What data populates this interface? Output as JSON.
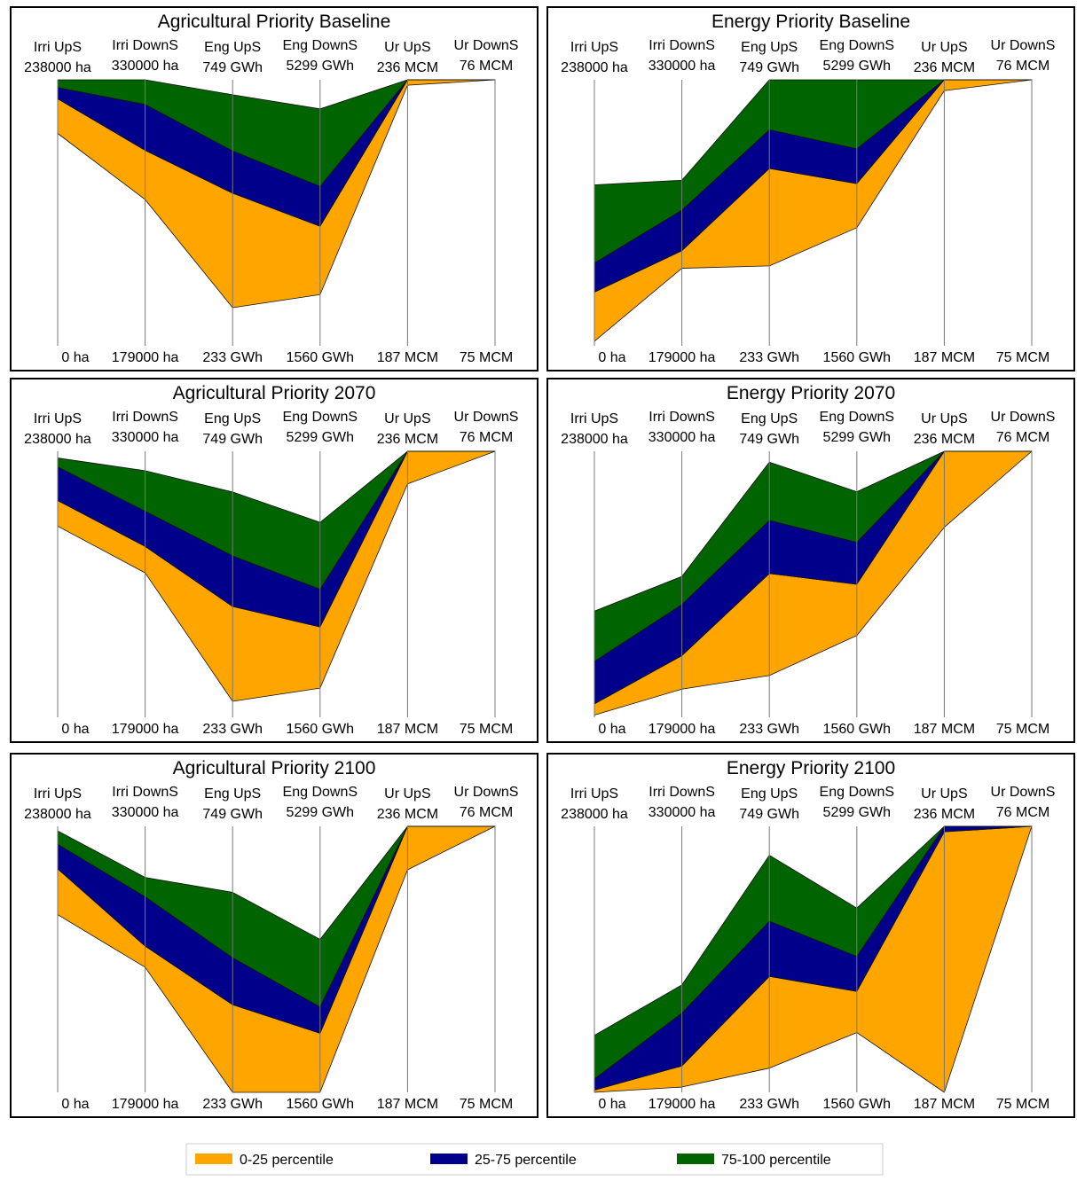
{
  "chart_data": [
    {
      "type": "parallel",
      "title": "Agricultural Priority Baseline",
      "axes": [
        {
          "name": "Irri UpS",
          "lim": [
            {
              "value": 0,
              "label": "0 ha"
            },
            {
              "value": 238000,
              "label": "238000 ha"
            }
          ]
        },
        {
          "name": "Irri DownS",
          "lim": [
            {
              "value": 179000,
              "label": "179000 ha"
            },
            {
              "value": 330000,
              "label": "330000 ha"
            }
          ]
        },
        {
          "name": "Eng UpS",
          "lim": [
            {
              "value": 233,
              "label": "233 GWh"
            },
            {
              "value": 749,
              "label": "749 GWh"
            }
          ]
        },
        {
          "name": "Eng DownS",
          "lim": [
            {
              "value": 1560,
              "label": "1560 GWh"
            },
            {
              "value": 5299,
              "label": "5299 GWh"
            }
          ]
        },
        {
          "name": "Ur UpS",
          "lim": [
            {
              "value": 187,
              "label": "187 MCM"
            },
            {
              "value": 236,
              "label": "236 MCM"
            }
          ]
        },
        {
          "name": "Ur DownS",
          "lim": [
            {
              "value": 75,
              "label": "75 MCM"
            },
            {
              "value": 76,
              "label": "76 MCM"
            }
          ]
        }
      ],
      "series": [
        {
          "name": "0-25 percentile",
          "color": "#ffa500",
          "low": [
            190000,
            262000,
            307,
            2280,
            235,
            76
          ],
          "high": [
            221000,
            290000,
            529,
            3240,
            236,
            76
          ]
        },
        {
          "name": "25-75 percentile",
          "color": "#00008b",
          "low": [
            221000,
            290000,
            529,
            3240,
            236,
            76
          ],
          "high": [
            231000,
            316000,
            611,
            3800,
            236,
            76
          ]
        },
        {
          "name": "75-100 percentile",
          "color": "#006400",
          "low": [
            231000,
            316000,
            611,
            3800,
            236,
            76
          ],
          "high": [
            238000,
            330000,
            720,
            4890,
            236,
            76
          ]
        }
      ]
    },
    {
      "type": "parallel",
      "title": "Energy Priority Baseline",
      "axes": [
        {
          "name": "Irri UpS",
          "lim": [
            {
              "value": 0,
              "label": "0 ha"
            },
            {
              "value": 238000,
              "label": "238000 ha"
            }
          ]
        },
        {
          "name": "Irri DownS",
          "lim": [
            {
              "value": 179000,
              "label": "179000 ha"
            },
            {
              "value": 330000,
              "label": "330000 ha"
            }
          ]
        },
        {
          "name": "Eng UpS",
          "lim": [
            {
              "value": 233,
              "label": "233 GWh"
            },
            {
              "value": 749,
              "label": "749 GWh"
            }
          ]
        },
        {
          "name": "Eng DownS",
          "lim": [
            {
              "value": 1560,
              "label": "1560 GWh"
            },
            {
              "value": 5299,
              "label": "5299 GWh"
            }
          ]
        },
        {
          "name": "Ur UpS",
          "lim": [
            {
              "value": 187,
              "label": "187 MCM"
            },
            {
              "value": 236,
              "label": "236 MCM"
            }
          ]
        },
        {
          "name": "Ur DownS",
          "lim": [
            {
              "value": 75,
              "label": "75 MCM"
            },
            {
              "value": 76,
              "label": "76 MCM"
            }
          ]
        }
      ],
      "series": [
        {
          "name": "0-25 percentile",
          "color": "#ffa500",
          "low": [
            4000,
            223000,
            388,
            3220,
            234,
            76
          ],
          "high": [
            48000,
            233000,
            577,
            3840,
            236,
            76
          ]
        },
        {
          "name": "25-75 percentile",
          "color": "#00008b",
          "low": [
            48000,
            233000,
            577,
            3840,
            236,
            76
          ],
          "high": [
            74000,
            256000,
            652,
            4330,
            236,
            76
          ]
        },
        {
          "name": "75-100 percentile",
          "color": "#006400",
          "low": [
            74000,
            256000,
            652,
            4330,
            236,
            76
          ],
          "high": [
            144000,
            273000,
            749,
            5299,
            236,
            76
          ]
        }
      ]
    },
    {
      "type": "parallel",
      "title": "Agricultural Priority 2070",
      "axes": [
        {
          "name": "Irri UpS",
          "lim": [
            {
              "value": 0,
              "label": "0 ha"
            },
            {
              "value": 238000,
              "label": "238000 ha"
            }
          ]
        },
        {
          "name": "Irri DownS",
          "lim": [
            {
              "value": 179000,
              "label": "179000 ha"
            },
            {
              "value": 330000,
              "label": "330000 ha"
            }
          ]
        },
        {
          "name": "Eng UpS",
          "lim": [
            {
              "value": 233,
              "label": "233 GWh"
            },
            {
              "value": 749,
              "label": "749 GWh"
            }
          ]
        },
        {
          "name": "Eng DownS",
          "lim": [
            {
              "value": 1560,
              "label": "1560 GWh"
            },
            {
              "value": 5299,
              "label": "5299 GWh"
            }
          ]
        },
        {
          "name": "Ur UpS",
          "lim": [
            {
              "value": 187,
              "label": "187 MCM"
            },
            {
              "value": 236,
              "label": "236 MCM"
            }
          ]
        },
        {
          "name": "Ur DownS",
          "lim": [
            {
              "value": 75,
              "label": "75 MCM"
            },
            {
              "value": 76,
              "label": "76 MCM"
            }
          ]
        }
      ],
      "series": [
        {
          "name": "0-25 percentile",
          "color": "#ffa500",
          "low": [
            171000,
            261000,
            264,
            1970,
            230,
            76
          ],
          "high": [
            194000,
            276000,
            448,
            2830,
            236,
            76
          ]
        },
        {
          "name": "25-75 percentile",
          "color": "#00008b",
          "low": [
            194000,
            276000,
            448,
            2830,
            236,
            76
          ],
          "high": [
            224000,
            296000,
            546,
            3360,
            236,
            76
          ]
        },
        {
          "name": "75-100 percentile",
          "color": "#006400",
          "low": [
            224000,
            296000,
            546,
            3360,
            236,
            76
          ],
          "high": [
            232000,
            319000,
            670,
            4300,
            236,
            76
          ]
        }
      ]
    },
    {
      "type": "parallel",
      "title": "Energy Priority 2070",
      "axes": [
        {
          "name": "Irri UpS",
          "lim": [
            {
              "value": 0,
              "label": "0 ha"
            },
            {
              "value": 238000,
              "label": "238000 ha"
            }
          ]
        },
        {
          "name": "Irri DownS",
          "lim": [
            {
              "value": 179000,
              "label": "179000 ha"
            },
            {
              "value": 330000,
              "label": "330000 ha"
            }
          ]
        },
        {
          "name": "Eng UpS",
          "lim": [
            {
              "value": 233,
              "label": "233 GWh"
            },
            {
              "value": 749,
              "label": "749 GWh"
            }
          ]
        },
        {
          "name": "Eng DownS",
          "lim": [
            {
              "value": 1560,
              "label": "1560 GWh"
            },
            {
              "value": 5299,
              "label": "5299 GWh"
            }
          ]
        },
        {
          "name": "Ur UpS",
          "lim": [
            {
              "value": 187,
              "label": "187 MCM"
            },
            {
              "value": 236,
              "label": "236 MCM"
            }
          ]
        },
        {
          "name": "Ur DownS",
          "lim": [
            {
              "value": 75,
              "label": "75 MCM"
            },
            {
              "value": 76,
              "label": "76 MCM"
            }
          ]
        }
      ],
      "series": [
        {
          "name": "0-25 percentile",
          "color": "#ffa500",
          "low": [
            2000,
            195000,
            314,
            2710,
            222,
            76
          ],
          "high": [
            12000,
            214000,
            512,
            3430,
            236,
            76
          ]
        },
        {
          "name": "25-75 percentile",
          "color": "#00008b",
          "low": [
            12000,
            214000,
            512,
            3430,
            236,
            76
          ],
          "high": [
            50000,
            243000,
            615,
            4020,
            236,
            76
          ]
        },
        {
          "name": "75-100 percentile",
          "color": "#006400",
          "low": [
            50000,
            243000,
            615,
            4020,
            236,
            76
          ],
          "high": [
            95000,
            259000,
            728,
            4730,
            236,
            76
          ]
        }
      ]
    },
    {
      "type": "parallel",
      "title": "Agricultural Priority 2100",
      "axes": [
        {
          "name": "Irri UpS",
          "lim": [
            {
              "value": 0,
              "label": "0 ha"
            },
            {
              "value": 238000,
              "label": "238000 ha"
            }
          ]
        },
        {
          "name": "Irri DownS",
          "lim": [
            {
              "value": 179000,
              "label": "179000 ha"
            },
            {
              "value": 330000,
              "label": "330000 ha"
            }
          ]
        },
        {
          "name": "Eng UpS",
          "lim": [
            {
              "value": 233,
              "label": "233 GWh"
            },
            {
              "value": 749,
              "label": "749 GWh"
            }
          ]
        },
        {
          "name": "Eng DownS",
          "lim": [
            {
              "value": 1560,
              "label": "1560 GWh"
            },
            {
              "value": 5299,
              "label": "5299 GWh"
            }
          ]
        },
        {
          "name": "Ur UpS",
          "lim": [
            {
              "value": 187,
              "label": "187 MCM"
            },
            {
              "value": 236,
              "label": "236 MCM"
            }
          ]
        },
        {
          "name": "Ur DownS",
          "lim": [
            {
              "value": 75,
              "label": "75 MCM"
            },
            {
              "value": 76,
              "label": "76 MCM"
            }
          ]
        }
      ],
      "series": [
        {
          "name": "0-25 percentile",
          "color": "#ffa500",
          "low": [
            159000,
            250000,
            233,
            1560,
            228,
            76
          ],
          "high": [
            200000,
            262000,
            403,
            2390,
            236,
            76
          ]
        },
        {
          "name": "25-75 percentile",
          "color": "#00008b",
          "low": [
            200000,
            262000,
            403,
            2390,
            236,
            76
          ],
          "high": [
            222000,
            290000,
            494,
            2760,
            236,
            76
          ]
        },
        {
          "name": "75-100 percentile",
          "color": "#006400",
          "low": [
            222000,
            290000,
            494,
            2760,
            236,
            76
          ],
          "high": [
            234000,
            301000,
            621,
            3710,
            236,
            76
          ]
        }
      ]
    },
    {
      "type": "parallel",
      "title": "Energy Priority 2100",
      "axes": [
        {
          "name": "Irri UpS",
          "lim": [
            {
              "value": 0,
              "label": "0 ha"
            },
            {
              "value": 238000,
              "label": "238000 ha"
            }
          ]
        },
        {
          "name": "Irri DownS",
          "lim": [
            {
              "value": 179000,
              "label": "179000 ha"
            },
            {
              "value": 330000,
              "label": "330000 ha"
            }
          ]
        },
        {
          "name": "Eng UpS",
          "lim": [
            {
              "value": 233,
              "label": "233 GWh"
            },
            {
              "value": 749,
              "label": "749 GWh"
            }
          ]
        },
        {
          "name": "Eng DownS",
          "lim": [
            {
              "value": 1560,
              "label": "1560 GWh"
            },
            {
              "value": 5299,
              "label": "5299 GWh"
            }
          ]
        },
        {
          "name": "Ur UpS",
          "lim": [
            {
              "value": 187,
              "label": "187 MCM"
            },
            {
              "value": 236,
              "label": "236 MCM"
            }
          ]
        },
        {
          "name": "Ur DownS",
          "lim": [
            {
              "value": 75,
              "label": "75 MCM"
            },
            {
              "value": 76,
              "label": "76 MCM"
            }
          ]
        }
      ],
      "series": [
        {
          "name": "0-25 percentile",
          "color": "#ffa500",
          "low": [
            0,
            182000,
            280,
            2400,
            187,
            76
          ],
          "high": [
            2000,
            194000,
            458,
            2980,
            235,
            76
          ]
        },
        {
          "name": "25-75 percentile",
          "color": "#00008b",
          "low": [
            2000,
            194000,
            458,
            2980,
            235,
            76
          ],
          "high": [
            12000,
            224000,
            565,
            3470,
            236,
            76
          ]
        },
        {
          "name": "75-100 percentile",
          "color": "#006400",
          "low": [
            12000,
            224000,
            565,
            3470,
            236,
            76
          ],
          "high": [
            51000,
            240000,
            693,
            4150,
            236,
            76
          ]
        }
      ]
    }
  ]
}
